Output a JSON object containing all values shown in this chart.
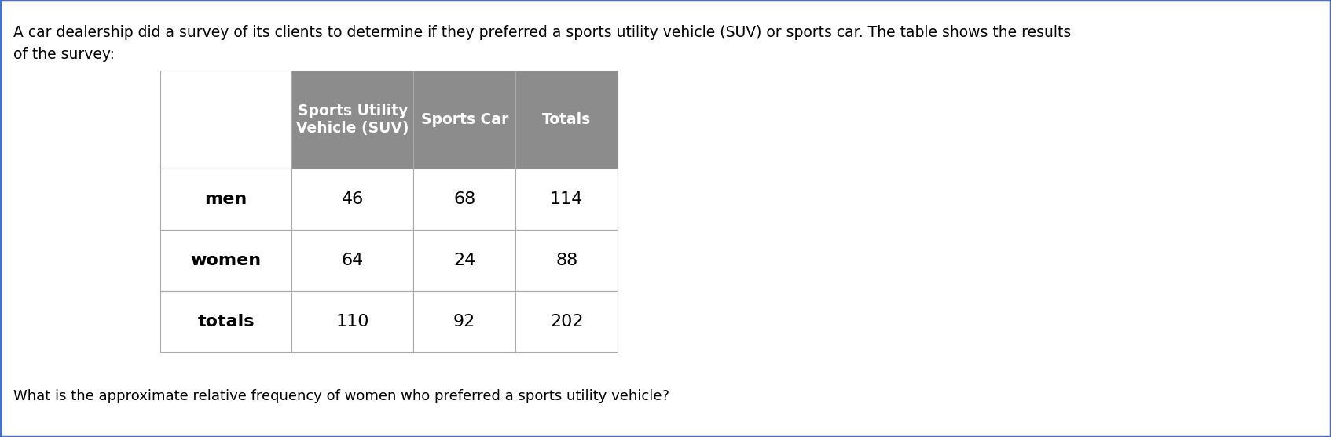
{
  "intro_text": "A car dealership did a survey of its clients to determine if they preferred a sports utility vehicle (SUV) or sports car. The table shows the results\nof the survey:",
  "question_text": "What is the approximate relative frequency of women who preferred a sports utility vehicle?",
  "col_headers": [
    "Sports Utility\nVehicle (SUV)",
    "Sports Car",
    "Totals"
  ],
  "row_labels": [
    "men",
    "women",
    "totals"
  ],
  "data": [
    [
      46,
      68,
      114
    ],
    [
      64,
      24,
      88
    ],
    [
      110,
      92,
      202
    ]
  ],
  "header_bg": "#8C8C8C",
  "header_fg": "#FFFFFF",
  "cell_bg": "#FFFFFF",
  "cell_fg": "#000000",
  "cell_border": "#AAAAAA",
  "outer_border_color": "#4472C4",
  "fig_bg": "#FFFFFF",
  "intro_fontsize": 13.5,
  "question_fontsize": 13.0,
  "header_fontsize": 13.5,
  "cell_fontsize": 16,
  "row_label_fontsize": 16
}
